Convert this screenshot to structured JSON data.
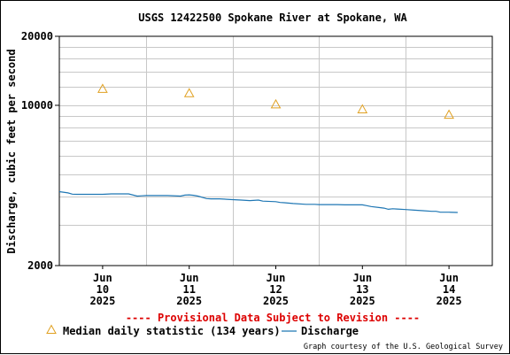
{
  "chart_data": {
    "type": "line",
    "title": "USGS 12422500 Spokane River at Spokane, WA",
    "ylabel": "Discharge, cubic feet per second",
    "xlabel": "",
    "y_scale": "log",
    "ylim": [
      2000,
      20000
    ],
    "y_ticks": [
      "2000",
      "10000",
      "20000"
    ],
    "x_ticks": [
      {
        "day": 10,
        "lines": [
          "Jun",
          "10",
          "2025"
        ]
      },
      {
        "day": 11,
        "lines": [
          "Jun",
          "11",
          "2025"
        ]
      },
      {
        "day": 12,
        "lines": [
          "Jun",
          "12",
          "2025"
        ]
      },
      {
        "day": 13,
        "lines": [
          "Jun",
          "13",
          "2025"
        ]
      },
      {
        "day": 14,
        "lines": [
          "Jun",
          "14",
          "2025"
        ]
      }
    ],
    "xlim": [
      9.5,
      14.5
    ],
    "grid": true,
    "notice": "---- Provisional Data Subject to Revision ----",
    "credit": "Graph courtesy of the U.S. Geological Survey",
    "series": [
      {
        "name": "Median daily statistic (134 years)",
        "kind": "marker",
        "color": "#e0a020",
        "x": [
          10,
          11,
          12,
          13,
          14
        ],
        "y": [
          11800,
          11300,
          10100,
          9600,
          9100
        ]
      },
      {
        "name": "Discharge",
        "kind": "line",
        "color": "#1f77b4",
        "x": [
          9.5,
          9.6,
          9.65,
          9.7,
          9.85,
          10.0,
          10.1,
          10.15,
          10.3,
          10.4,
          10.45,
          10.5,
          10.6,
          10.75,
          10.9,
          10.95,
          11.0,
          11.05,
          11.1,
          11.2,
          11.25,
          11.3,
          11.35,
          11.5,
          11.6,
          11.7,
          11.8,
          11.85,
          12.0,
          12.05,
          12.1,
          12.2,
          12.35,
          12.45,
          12.5,
          12.6,
          12.7,
          12.8,
          12.95,
          13.0,
          13.05,
          13.1,
          13.2,
          13.25,
          13.3,
          13.35,
          13.4,
          13.5,
          13.6,
          13.7,
          13.8,
          13.85,
          13.9,
          14.0,
          14.1
        ],
        "y": [
          4200,
          4150,
          4100,
          4090,
          4090,
          4090,
          4110,
          4110,
          4110,
          4020,
          4030,
          4040,
          4040,
          4040,
          4020,
          4060,
          4070,
          4050,
          4020,
          3920,
          3910,
          3910,
          3910,
          3880,
          3860,
          3840,
          3860,
          3820,
          3800,
          3770,
          3760,
          3730,
          3700,
          3700,
          3690,
          3690,
          3690,
          3680,
          3680,
          3680,
          3650,
          3620,
          3580,
          3560,
          3520,
          3540,
          3530,
          3510,
          3490,
          3470,
          3450,
          3450,
          3420,
          3420,
          3410
        ]
      }
    ]
  }
}
